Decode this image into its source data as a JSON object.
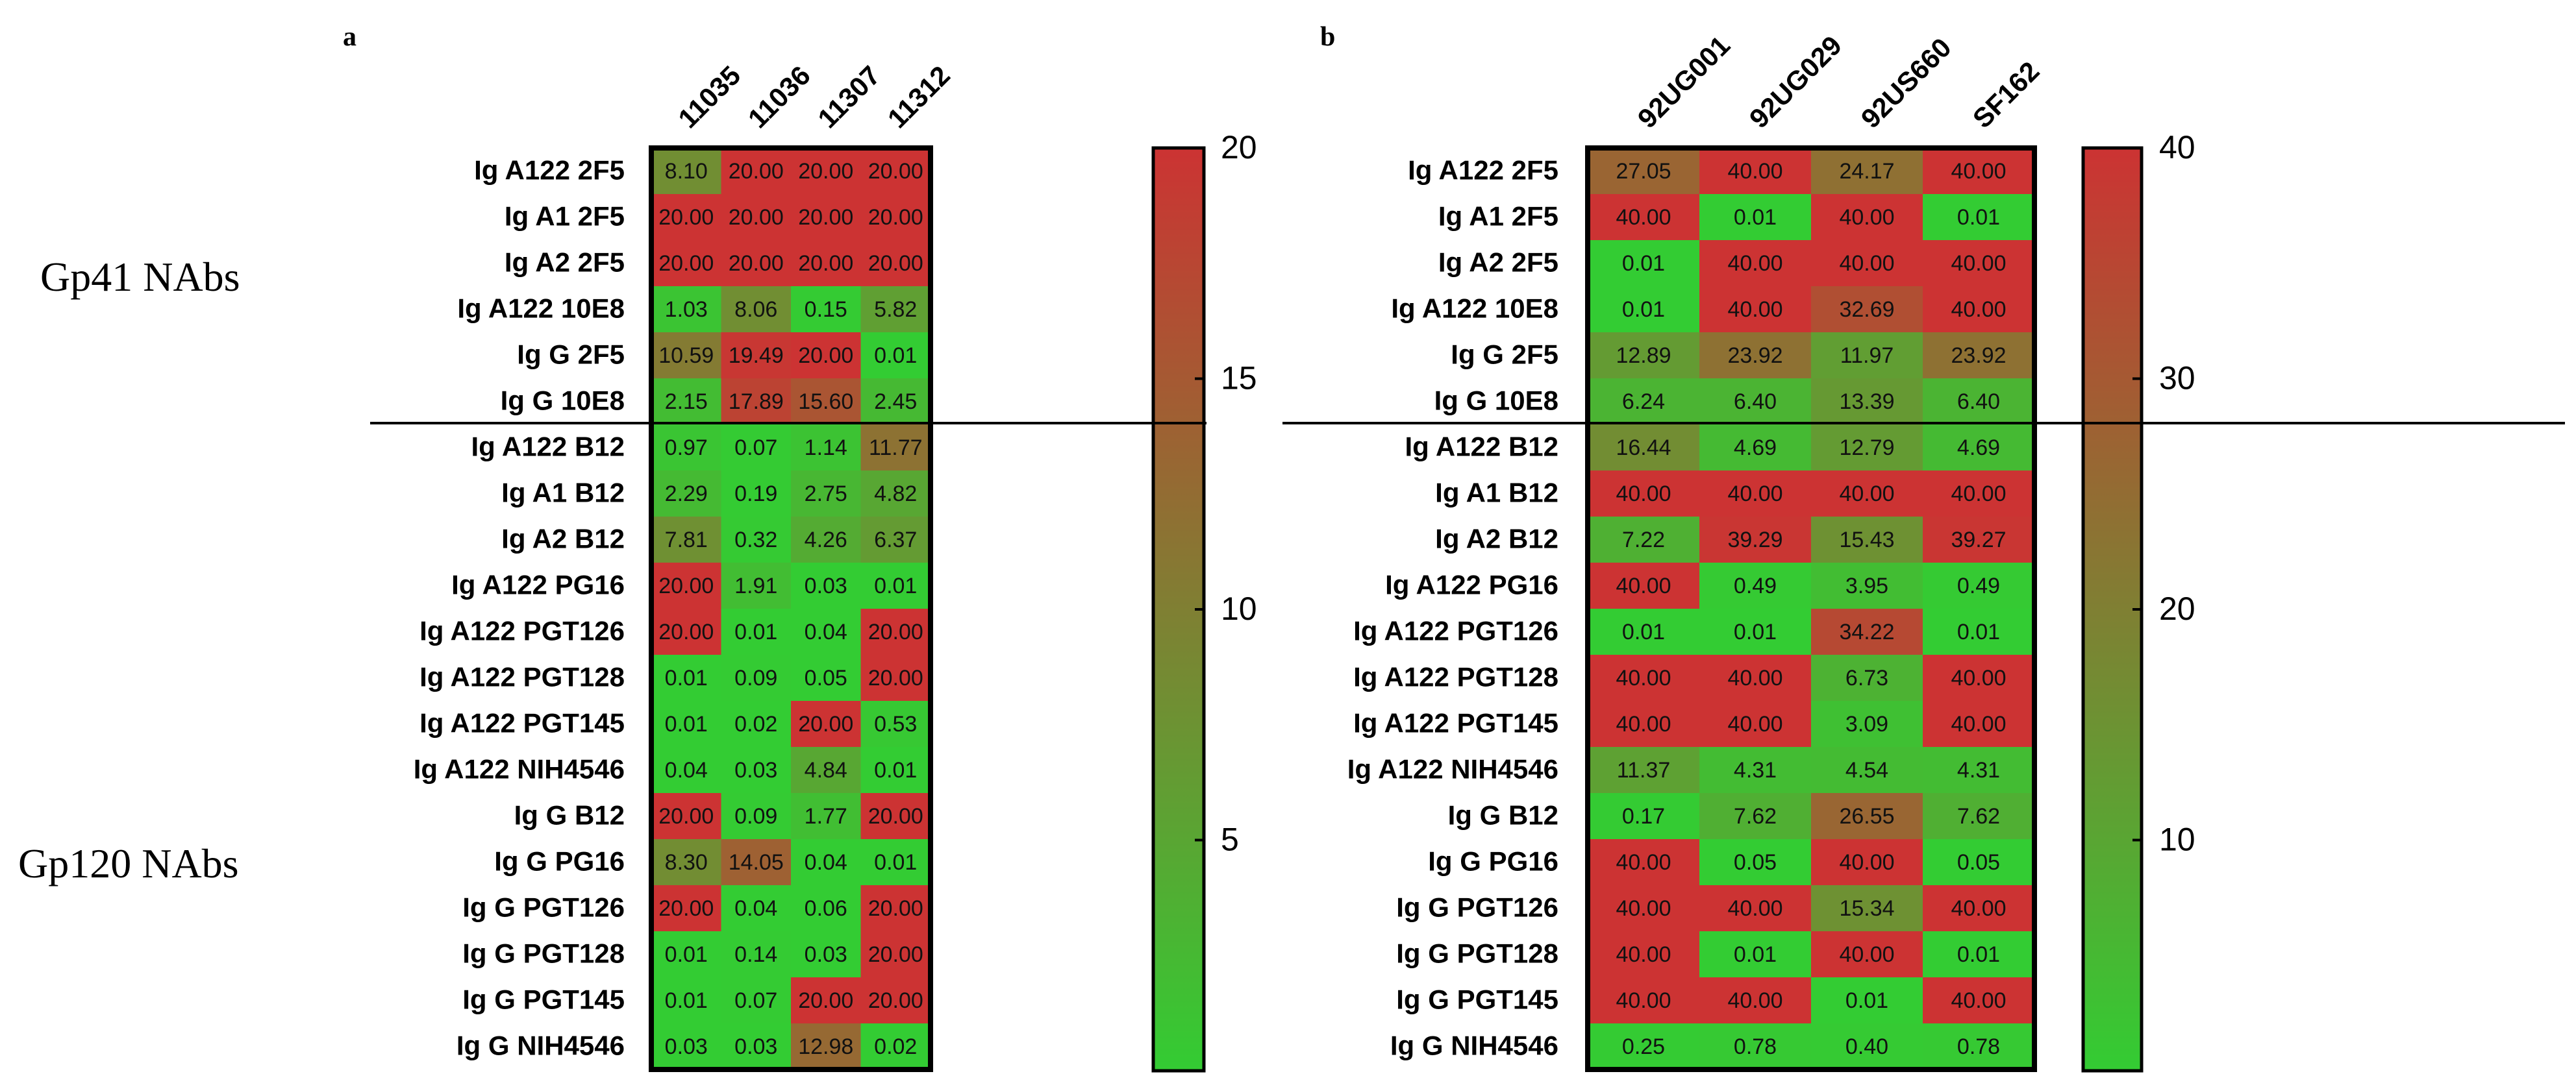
{
  "colors": {
    "low": "#33CC33",
    "high": "#CC3333",
    "border": "#000000"
  },
  "group_labels": [
    "Gp41 NAbs",
    "Gp120 NAbs"
  ],
  "rows": [
    "Ig A122 2F5",
    "Ig A1 2F5",
    "Ig A2 2F5",
    "Ig A122 10E8",
    "Ig G 2F5",
    "Ig G 10E8",
    "Ig A122 B12",
    "Ig A1 B12",
    "Ig A2 B12",
    "Ig A122 PG16",
    "Ig A122 PGT126",
    "Ig A122 PGT128",
    "Ig A122 PGT145",
    "Ig A122 NIH4546",
    "Ig G B12",
    "Ig G PG16",
    "Ig G PGT126",
    "Ig G PGT128",
    "Ig G PGT145",
    "Ig G NIH4546"
  ],
  "chart_data": [
    {
      "type": "heatmap",
      "panel_label": "a",
      "columns": [
        "11035",
        "11036",
        "11307",
        "11312"
      ],
      "values": [
        [
          8.1,
          20.0,
          20.0,
          20.0
        ],
        [
          20.0,
          20.0,
          20.0,
          20.0
        ],
        [
          20.0,
          20.0,
          20.0,
          20.0
        ],
        [
          1.03,
          8.06,
          0.15,
          5.82
        ],
        [
          10.59,
          19.49,
          20.0,
          0.01
        ],
        [
          2.15,
          17.89,
          15.6,
          2.45
        ],
        [
          0.97,
          0.07,
          1.14,
          11.77
        ],
        [
          2.29,
          0.19,
          2.75,
          4.82
        ],
        [
          7.81,
          0.32,
          4.26,
          6.37
        ],
        [
          20.0,
          1.91,
          0.03,
          0.01
        ],
        [
          20.0,
          0.01,
          0.04,
          20.0
        ],
        [
          0.01,
          0.09,
          0.05,
          20.0
        ],
        [
          0.01,
          0.02,
          20.0,
          0.53
        ],
        [
          0.04,
          0.03,
          4.84,
          0.01
        ],
        [
          20.0,
          0.09,
          1.77,
          20.0
        ],
        [
          8.3,
          14.05,
          0.04,
          0.01
        ],
        [
          20.0,
          0.04,
          0.06,
          20.0
        ],
        [
          0.01,
          0.14,
          0.03,
          20.0
        ],
        [
          0.01,
          0.07,
          20.0,
          20.0
        ],
        [
          0.03,
          0.03,
          12.98,
          0.02
        ]
      ],
      "color_range": [
        0,
        20
      ],
      "colorbar_ticks": [
        "5",
        "10",
        "15",
        "20"
      ],
      "colorbar_tick_values": [
        5,
        10,
        15,
        20
      ]
    },
    {
      "type": "heatmap",
      "panel_label": "b",
      "columns": [
        "92UG001",
        "92UG029",
        "92US660",
        "SF162"
      ],
      "values": [
        [
          27.05,
          40.0,
          24.17,
          40.0
        ],
        [
          40.0,
          0.01,
          40.0,
          0.01
        ],
        [
          0.01,
          40.0,
          40.0,
          40.0
        ],
        [
          0.01,
          40.0,
          32.69,
          40.0
        ],
        [
          12.89,
          23.92,
          11.97,
          23.92
        ],
        [
          6.24,
          6.4,
          13.39,
          6.4
        ],
        [
          16.44,
          4.69,
          12.79,
          4.69
        ],
        [
          40.0,
          40.0,
          40.0,
          40.0
        ],
        [
          7.22,
          39.29,
          15.43,
          39.27
        ],
        [
          40.0,
          0.49,
          3.95,
          0.49
        ],
        [
          0.01,
          0.01,
          34.22,
          0.01
        ],
        [
          40.0,
          40.0,
          6.73,
          40.0
        ],
        [
          40.0,
          40.0,
          3.09,
          40.0
        ],
        [
          11.37,
          4.31,
          4.54,
          4.31
        ],
        [
          0.17,
          7.62,
          26.55,
          7.62
        ],
        [
          40.0,
          0.05,
          40.0,
          0.05
        ],
        [
          40.0,
          40.0,
          15.34,
          40.0
        ],
        [
          40.0,
          0.01,
          40.0,
          0.01
        ],
        [
          40.0,
          40.0,
          0.01,
          40.0
        ],
        [
          0.25,
          0.78,
          0.4,
          0.78
        ]
      ],
      "color_range": [
        0,
        40
      ],
      "colorbar_ticks": [
        "10",
        "20",
        "30",
        "40"
      ],
      "colorbar_tick_values": [
        10,
        20,
        30,
        40
      ]
    }
  ]
}
